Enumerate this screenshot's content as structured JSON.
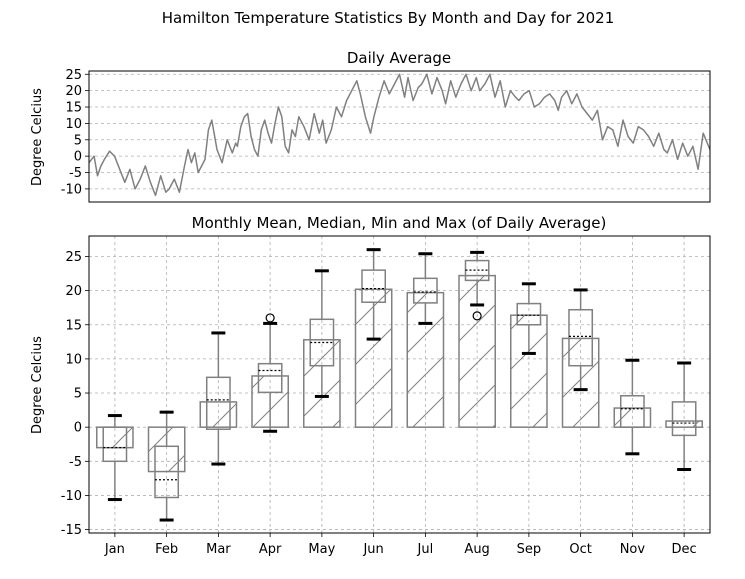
{
  "figure": {
    "suptitle": "Hamilton Temperature Statistics By Month and Day for 2021"
  },
  "chart_data": [
    {
      "type": "line",
      "title": "Daily Average",
      "ylabel": "Degree Celcius",
      "xlabel": "",
      "x_range": [
        1,
        365
      ],
      "ylim": [
        -14,
        26
      ],
      "yticks": [
        -10,
        -5,
        0,
        5,
        10,
        15,
        20,
        25
      ],
      "grid": "dashed",
      "line_color": "#808080",
      "series": [
        {
          "anchors_day": [
            1,
            4,
            6,
            8,
            10,
            13,
            16,
            19,
            22,
            25,
            28,
            31,
            34,
            37,
            40,
            43,
            46,
            48,
            51,
            54,
            57,
            59,
            61,
            63,
            65,
            67,
            69,
            71,
            73,
            76,
            79,
            82,
            85,
            87,
            88,
            90,
            92,
            94,
            96,
            98,
            100,
            102,
            104,
            106,
            108,
            110,
            112,
            114,
            116,
            118,
            120,
            122,
            124,
            127,
            130,
            133,
            136,
            138,
            140,
            143,
            146,
            149,
            152,
            155,
            158,
            160,
            163,
            166,
            168,
            171,
            174,
            177,
            180,
            183,
            186,
            188,
            191,
            194,
            196,
            199,
            202,
            205,
            208,
            210,
            213,
            216,
            219,
            222,
            225,
            228,
            230,
            233,
            236,
            239,
            242,
            245,
            248,
            251,
            253,
            256,
            259,
            262,
            265,
            268,
            271,
            274,
            276,
            278,
            281,
            284,
            287,
            290,
            293,
            296,
            299,
            302,
            305,
            308,
            311,
            314,
            317,
            320,
            323,
            326,
            329,
            332,
            335,
            338,
            340,
            343,
            346,
            349,
            352,
            355,
            358,
            361,
            365
          ],
          "anchors_value": [
            -2,
            0,
            -6,
            -3,
            -1,
            1.5,
            0,
            -4,
            -8,
            -4,
            -10,
            -7,
            -3,
            -8,
            -12,
            -6,
            -11,
            -10,
            -7,
            -11,
            -3,
            2,
            -2,
            1,
            -5,
            -3,
            -1,
            8,
            11,
            2,
            -2,
            5,
            1,
            4,
            3,
            9,
            12,
            13,
            6,
            2,
            0,
            8,
            11,
            7,
            4,
            10,
            15,
            12,
            3,
            1,
            8,
            6,
            12,
            9,
            5,
            13,
            7,
            11,
            4,
            8,
            15,
            12,
            17,
            20,
            23,
            19,
            12,
            7,
            12,
            18,
            23,
            19,
            22,
            25,
            18,
            24,
            17,
            21,
            22,
            25,
            19,
            24,
            20,
            16,
            23,
            18,
            22,
            25,
            20,
            24,
            20,
            22,
            25,
            18,
            23,
            15,
            20,
            18,
            17,
            19,
            20,
            15,
            16,
            18,
            19,
            17,
            14,
            18,
            20,
            16,
            19,
            15,
            13,
            11,
            14,
            5,
            9,
            8,
            3,
            11,
            6,
            4,
            9,
            8,
            6,
            3,
            7,
            2,
            1,
            5,
            -1,
            4,
            0,
            3,
            -4,
            7,
            2,
            -5,
            4,
            -1,
            5
          ]
        }
      ]
    },
    {
      "type": "box",
      "title": "Monthly Mean, Median, Min and Max (of Daily Average)",
      "ylabel": "Degree Celcius",
      "xlabel": "",
      "ylim": [
        -15.5,
        28
      ],
      "yticks": [
        -15,
        -10,
        -5,
        0,
        5,
        10,
        15,
        20,
        25
      ],
      "grid": "dashed",
      "categories": [
        "Jan",
        "Feb",
        "Mar",
        "Apr",
        "May",
        "Jun",
        "Jul",
        "Aug",
        "Sep",
        "Oct",
        "Nov",
        "Dec"
      ],
      "mean_bars": [
        -3.0,
        -6.5,
        3.7,
        7.5,
        12.8,
        20.2,
        19.7,
        22.2,
        16.4,
        13.0,
        2.8,
        0.9
      ],
      "median": [
        -3.0,
        -7.7,
        4.0,
        8.3,
        12.4,
        20.3,
        19.8,
        23.0,
        16.4,
        13.3,
        2.7,
        0.6
      ],
      "q1": [
        -5.0,
        -10.3,
        -0.3,
        5.1,
        9.0,
        18.3,
        18.2,
        21.5,
        15.0,
        9.0,
        0.0,
        -1.2
      ],
      "q3": [
        0.0,
        -2.8,
        7.3,
        9.3,
        15.8,
        23.0,
        21.8,
        24.4,
        18.1,
        17.2,
        4.6,
        3.7
      ],
      "whisker_low": [
        -10.6,
        -13.6,
        -5.4,
        -0.6,
        4.5,
        12.9,
        15.2,
        17.9,
        10.8,
        5.5,
        -3.9,
        -6.2
      ],
      "whisker_high": [
        1.7,
        2.2,
        13.8,
        15.2,
        22.9,
        26.0,
        25.4,
        25.6,
        21.0,
        20.1,
        9.8,
        9.4
      ],
      "outliers": [
        [],
        [],
        [],
        [
          16.0
        ],
        [],
        [],
        [],
        [
          16.3
        ],
        [],
        [],
        [],
        []
      ],
      "bar_fill": "none",
      "hatch": "/",
      "edge_color": "#808080",
      "cap_color": "#000000"
    }
  ]
}
